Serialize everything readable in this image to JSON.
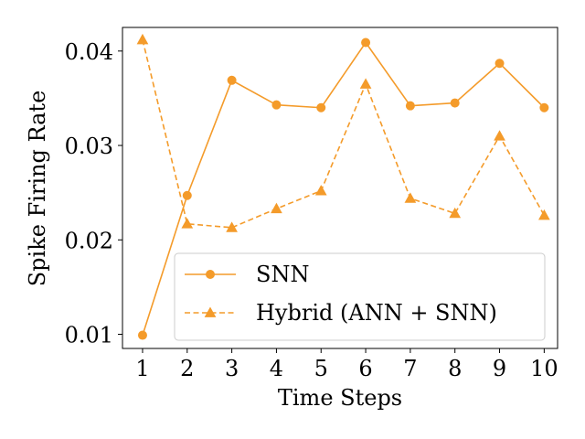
{
  "chart_data": {
    "type": "line",
    "title": "",
    "xlabel": "Time Steps",
    "ylabel": "Spike Firing Rate",
    "x": [
      1,
      2,
      3,
      4,
      5,
      6,
      7,
      8,
      9,
      10
    ],
    "xticks": [
      "1",
      "2",
      "3",
      "4",
      "5",
      "6",
      "7",
      "8",
      "9",
      "10"
    ],
    "xlim": [
      0.55,
      10.3
    ],
    "ylim": [
      0.0085,
      0.0425
    ],
    "yticks": [
      0.01,
      0.02,
      0.03,
      0.04
    ],
    "ytick_labels": [
      "0.01",
      "0.02",
      "0.03",
      "0.04"
    ],
    "grid": false,
    "legend_position": "lower-right",
    "series": [
      {
        "name": "SNN",
        "values": [
          0.0099,
          0.0247,
          0.0369,
          0.0343,
          0.034,
          0.0409,
          0.0342,
          0.0345,
          0.0387,
          0.034
        ],
        "color": "#f49b2a",
        "linestyle": "solid",
        "marker": "circle"
      },
      {
        "name": "Hybrid (ANN + SNN)",
        "values": [
          0.0412,
          0.0217,
          0.0213,
          0.0233,
          0.0252,
          0.0365,
          0.0244,
          0.0228,
          0.031,
          0.0226
        ],
        "color": "#f49b2a",
        "linestyle": "dashed",
        "marker": "triangle"
      }
    ]
  }
}
